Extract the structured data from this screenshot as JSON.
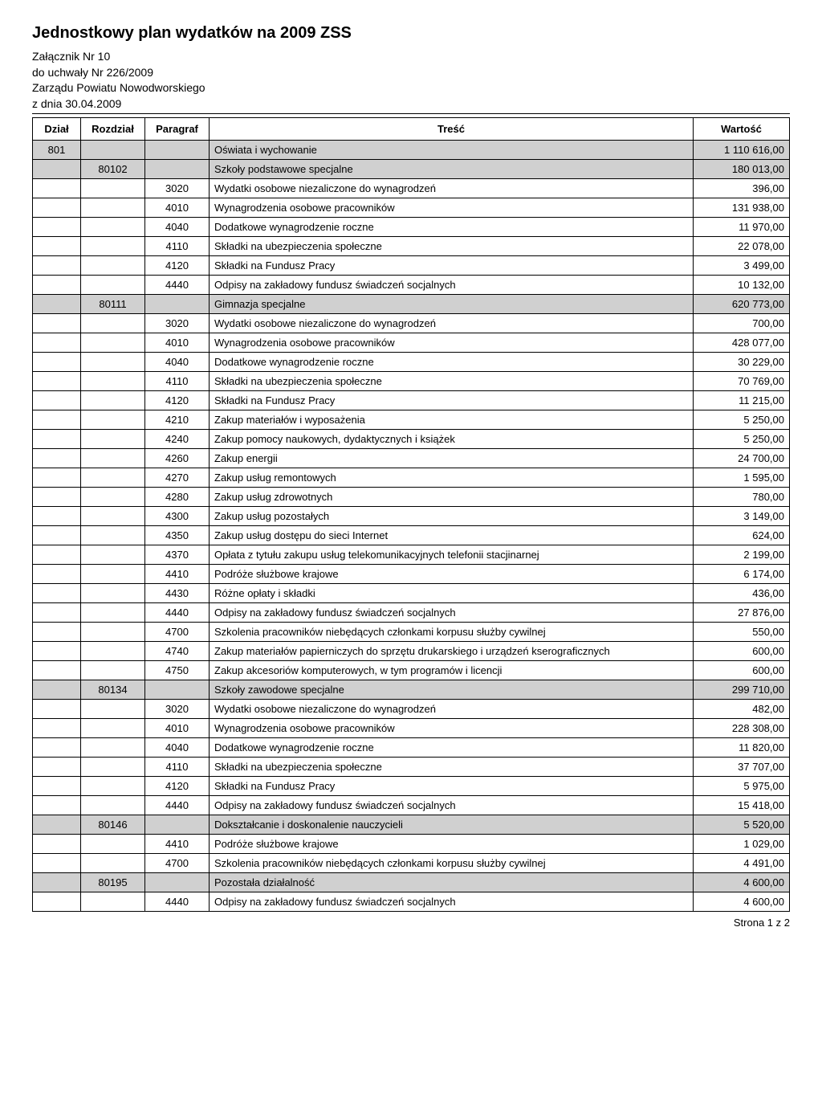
{
  "title": "Jednostkowy plan wydatków na 2009 ZSS",
  "subtitle_lines": [
    "Załącznik Nr 10",
    "do uchwały Nr 226/2009",
    "Zarządu Powiatu Nowodworskiego",
    "z dnia 30.04.2009"
  ],
  "columns": {
    "dzial": "Dział",
    "rozdzial": "Rozdział",
    "paragraf": "Paragraf",
    "tresc": "Treść",
    "wartosc": "Wartość"
  },
  "rows": [
    {
      "dzial": "801",
      "rozdzial": "",
      "paragraf": "",
      "tresc": "Oświata i wychowanie",
      "wartosc": "1 110 616,00",
      "shaded": true
    },
    {
      "dzial": "",
      "rozdzial": "80102",
      "paragraf": "",
      "tresc": "Szkoły podstawowe specjalne",
      "wartosc": "180 013,00",
      "shaded": true
    },
    {
      "dzial": "",
      "rozdzial": "",
      "paragraf": "3020",
      "tresc": "Wydatki osobowe niezaliczone do wynagrodzeń",
      "wartosc": "396,00",
      "shaded": false
    },
    {
      "dzial": "",
      "rozdzial": "",
      "paragraf": "4010",
      "tresc": "Wynagrodzenia osobowe pracowników",
      "wartosc": "131 938,00",
      "shaded": false
    },
    {
      "dzial": "",
      "rozdzial": "",
      "paragraf": "4040",
      "tresc": "Dodatkowe wynagrodzenie roczne",
      "wartosc": "11 970,00",
      "shaded": false
    },
    {
      "dzial": "",
      "rozdzial": "",
      "paragraf": "4110",
      "tresc": "Składki na ubezpieczenia społeczne",
      "wartosc": "22 078,00",
      "shaded": false
    },
    {
      "dzial": "",
      "rozdzial": "",
      "paragraf": "4120",
      "tresc": "Składki na Fundusz Pracy",
      "wartosc": "3 499,00",
      "shaded": false
    },
    {
      "dzial": "",
      "rozdzial": "",
      "paragraf": "4440",
      "tresc": "Odpisy na zakładowy fundusz świadczeń socjalnych",
      "wartosc": "10 132,00",
      "shaded": false
    },
    {
      "dzial": "",
      "rozdzial": "80111",
      "paragraf": "",
      "tresc": "Gimnazja specjalne",
      "wartosc": "620 773,00",
      "shaded": true
    },
    {
      "dzial": "",
      "rozdzial": "",
      "paragraf": "3020",
      "tresc": "Wydatki osobowe niezaliczone do wynagrodzeń",
      "wartosc": "700,00",
      "shaded": false
    },
    {
      "dzial": "",
      "rozdzial": "",
      "paragraf": "4010",
      "tresc": "Wynagrodzenia osobowe pracowników",
      "wartosc": "428 077,00",
      "shaded": false
    },
    {
      "dzial": "",
      "rozdzial": "",
      "paragraf": "4040",
      "tresc": "Dodatkowe wynagrodzenie roczne",
      "wartosc": "30 229,00",
      "shaded": false
    },
    {
      "dzial": "",
      "rozdzial": "",
      "paragraf": "4110",
      "tresc": "Składki na ubezpieczenia społeczne",
      "wartosc": "70 769,00",
      "shaded": false
    },
    {
      "dzial": "",
      "rozdzial": "",
      "paragraf": "4120",
      "tresc": "Składki na Fundusz Pracy",
      "wartosc": "11 215,00",
      "shaded": false
    },
    {
      "dzial": "",
      "rozdzial": "",
      "paragraf": "4210",
      "tresc": "Zakup materiałów i wyposażenia",
      "wartosc": "5 250,00",
      "shaded": false
    },
    {
      "dzial": "",
      "rozdzial": "",
      "paragraf": "4240",
      "tresc": "Zakup pomocy naukowych, dydaktycznych i książek",
      "wartosc": "5 250,00",
      "shaded": false
    },
    {
      "dzial": "",
      "rozdzial": "",
      "paragraf": "4260",
      "tresc": "Zakup energii",
      "wartosc": "24 700,00",
      "shaded": false
    },
    {
      "dzial": "",
      "rozdzial": "",
      "paragraf": "4270",
      "tresc": "Zakup usług remontowych",
      "wartosc": "1 595,00",
      "shaded": false
    },
    {
      "dzial": "",
      "rozdzial": "",
      "paragraf": "4280",
      "tresc": "Zakup usług zdrowotnych",
      "wartosc": "780,00",
      "shaded": false
    },
    {
      "dzial": "",
      "rozdzial": "",
      "paragraf": "4300",
      "tresc": "Zakup usług pozostałych",
      "wartosc": "3 149,00",
      "shaded": false
    },
    {
      "dzial": "",
      "rozdzial": "",
      "paragraf": "4350",
      "tresc": "Zakup usług dostępu do sieci Internet",
      "wartosc": "624,00",
      "shaded": false
    },
    {
      "dzial": "",
      "rozdzial": "",
      "paragraf": "4370",
      "tresc": "Opłata z tytułu zakupu usług telekomunikacyjnych telefonii stacjinarnej",
      "wartosc": "2 199,00",
      "shaded": false
    },
    {
      "dzial": "",
      "rozdzial": "",
      "paragraf": "4410",
      "tresc": "Podróże służbowe krajowe",
      "wartosc": "6 174,00",
      "shaded": false
    },
    {
      "dzial": "",
      "rozdzial": "",
      "paragraf": "4430",
      "tresc": "Różne opłaty i składki",
      "wartosc": "436,00",
      "shaded": false
    },
    {
      "dzial": "",
      "rozdzial": "",
      "paragraf": "4440",
      "tresc": "Odpisy na zakładowy fundusz świadczeń socjalnych",
      "wartosc": "27 876,00",
      "shaded": false
    },
    {
      "dzial": "",
      "rozdzial": "",
      "paragraf": "4700",
      "tresc": "Szkolenia pracowników niebędących członkami korpusu służby cywilnej",
      "wartosc": "550,00",
      "shaded": false
    },
    {
      "dzial": "",
      "rozdzial": "",
      "paragraf": "4740",
      "tresc": "Zakup materiałów papierniczych do sprzętu drukarskiego i urządzeń kserograficznych",
      "wartosc": "600,00",
      "shaded": false
    },
    {
      "dzial": "",
      "rozdzial": "",
      "paragraf": "4750",
      "tresc": "Zakup akcesoriów komputerowych, w tym programów i licencji",
      "wartosc": "600,00",
      "shaded": false
    },
    {
      "dzial": "",
      "rozdzial": "80134",
      "paragraf": "",
      "tresc": "Szkoły zawodowe specjalne",
      "wartosc": "299 710,00",
      "shaded": true
    },
    {
      "dzial": "",
      "rozdzial": "",
      "paragraf": "3020",
      "tresc": "Wydatki osobowe niezaliczone do wynagrodzeń",
      "wartosc": "482,00",
      "shaded": false
    },
    {
      "dzial": "",
      "rozdzial": "",
      "paragraf": "4010",
      "tresc": "Wynagrodzenia osobowe pracowników",
      "wartosc": "228 308,00",
      "shaded": false
    },
    {
      "dzial": "",
      "rozdzial": "",
      "paragraf": "4040",
      "tresc": "Dodatkowe wynagrodzenie roczne",
      "wartosc": "11 820,00",
      "shaded": false
    },
    {
      "dzial": "",
      "rozdzial": "",
      "paragraf": "4110",
      "tresc": "Składki na ubezpieczenia społeczne",
      "wartosc": "37 707,00",
      "shaded": false
    },
    {
      "dzial": "",
      "rozdzial": "",
      "paragraf": "4120",
      "tresc": "Składki na Fundusz Pracy",
      "wartosc": "5 975,00",
      "shaded": false
    },
    {
      "dzial": "",
      "rozdzial": "",
      "paragraf": "4440",
      "tresc": "Odpisy na zakładowy fundusz świadczeń socjalnych",
      "wartosc": "15 418,00",
      "shaded": false
    },
    {
      "dzial": "",
      "rozdzial": "80146",
      "paragraf": "",
      "tresc": "Dokształcanie i doskonalenie nauczycieli",
      "wartosc": "5 520,00",
      "shaded": true
    },
    {
      "dzial": "",
      "rozdzial": "",
      "paragraf": "4410",
      "tresc": "Podróże służbowe krajowe",
      "wartosc": "1 029,00",
      "shaded": false
    },
    {
      "dzial": "",
      "rozdzial": "",
      "paragraf": "4700",
      "tresc": "Szkolenia pracowników niebędących członkami korpusu służby cywilnej",
      "wartosc": "4 491,00",
      "shaded": false
    },
    {
      "dzial": "",
      "rozdzial": "80195",
      "paragraf": "",
      "tresc": "Pozostała działalność",
      "wartosc": "4 600,00",
      "shaded": true
    },
    {
      "dzial": "",
      "rozdzial": "",
      "paragraf": "4440",
      "tresc": "Odpisy na zakładowy fundusz świadczeń socjalnych",
      "wartosc": "4 600,00",
      "shaded": false
    }
  ],
  "footer": "Strona 1 z 2",
  "styling": {
    "background_color": "#ffffff",
    "text_color": "#000000",
    "border_color": "#000000",
    "shaded_row_color": "#d0d0d0",
    "title_fontsize": 20,
    "body_fontsize": 13,
    "column_widths": {
      "dzial": 60,
      "rozdzial": 80,
      "paragraf": 80,
      "wartosc": 120
    }
  }
}
